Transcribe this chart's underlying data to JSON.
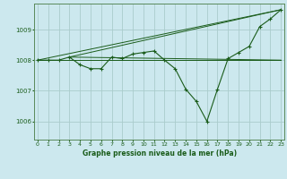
{
  "xlabel": "Graphe pression niveau de la mer (hPa)",
  "bg_color": "#cce8ee",
  "grid_color": "#aacccc",
  "line_color": "#1a5c1a",
  "marker_color": "#1a5c1a",
  "x_ticks": [
    0,
    1,
    2,
    3,
    4,
    5,
    6,
    7,
    8,
    9,
    10,
    11,
    12,
    13,
    14,
    15,
    16,
    17,
    18,
    19,
    20,
    21,
    22,
    23
  ],
  "y_ticks": [
    1006,
    1007,
    1008,
    1009
  ],
  "ylim": [
    1005.4,
    1009.85
  ],
  "xlim": [
    -0.3,
    23.3
  ],
  "main_data": [
    1008.0,
    1008.0,
    1008.0,
    1008.1,
    1007.85,
    1007.72,
    1007.72,
    1008.1,
    1008.05,
    1008.2,
    1008.25,
    1008.3,
    1008.0,
    1007.72,
    1007.05,
    1006.65,
    1006.0,
    1007.05,
    1008.05,
    1008.25,
    1008.45,
    1009.1,
    1009.35,
    1009.65
  ],
  "env_lines": [
    [
      [
        0,
        1008.0
      ],
      [
        23,
        1008.0
      ]
    ],
    [
      [
        0,
        1008.0
      ],
      [
        23,
        1009.65
      ]
    ],
    [
      [
        3,
        1008.1
      ],
      [
        23,
        1009.65
      ]
    ],
    [
      [
        3,
        1008.1
      ],
      [
        23,
        1008.0
      ]
    ]
  ]
}
